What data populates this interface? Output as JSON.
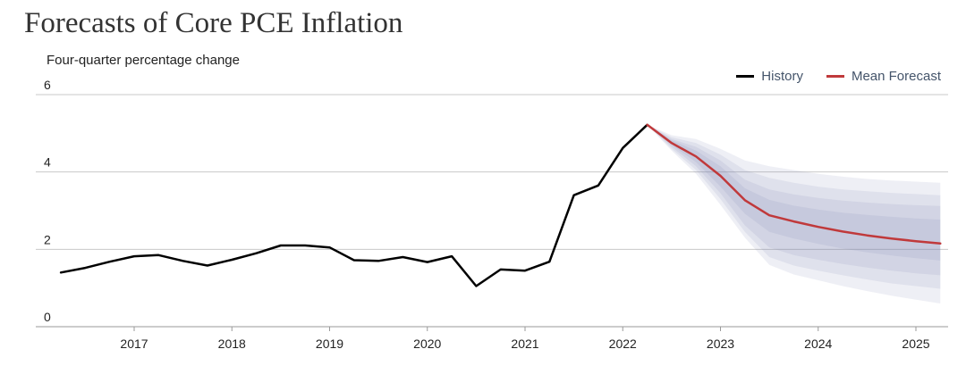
{
  "chart_data": {
    "type": "line",
    "title": "Forecasts of Core PCE Inflation",
    "ylabel": "Four-quarter percentage change",
    "xlabel": "",
    "ylim": [
      0,
      6
    ],
    "yticks": [
      0,
      2,
      4,
      6
    ],
    "xlim": [
      2016.25,
      2025.5
    ],
    "xticks": [
      {
        "label": "2017",
        "value": 2017
      },
      {
        "label": "2018",
        "value": 2018
      },
      {
        "label": "2019",
        "value": 2019
      },
      {
        "label": "2020",
        "value": 2020
      },
      {
        "label": "2021",
        "value": 2021
      },
      {
        "label": "2022",
        "value": 2022
      },
      {
        "label": "2023",
        "value": 2023
      },
      {
        "label": "2024",
        "value": 2024
      },
      {
        "label": "2025",
        "value": 2025
      }
    ],
    "grid": true,
    "legend_position": "top-right",
    "series": [
      {
        "name": "History",
        "color": "#000000",
        "points": [
          [
            2016.25,
            1.4
          ],
          [
            2016.5,
            1.52
          ],
          [
            2016.75,
            1.68
          ],
          [
            2017.0,
            1.82
          ],
          [
            2017.25,
            1.85
          ],
          [
            2017.5,
            1.7
          ],
          [
            2017.75,
            1.58
          ],
          [
            2018.0,
            1.73
          ],
          [
            2018.25,
            1.9
          ],
          [
            2018.5,
            2.1
          ],
          [
            2018.75,
            2.1
          ],
          [
            2019.0,
            2.05
          ],
          [
            2019.25,
            1.72
          ],
          [
            2019.5,
            1.7
          ],
          [
            2019.75,
            1.8
          ],
          [
            2020.0,
            1.67
          ],
          [
            2020.25,
            1.82
          ],
          [
            2020.5,
            1.05
          ],
          [
            2020.75,
            1.48
          ],
          [
            2021.0,
            1.45
          ],
          [
            2021.25,
            1.68
          ],
          [
            2021.5,
            3.4
          ],
          [
            2021.75,
            3.65
          ],
          [
            2022.0,
            4.62
          ],
          [
            2022.25,
            5.22
          ]
        ]
      },
      {
        "name": "Mean Forecast",
        "color": "#c0393b",
        "points": [
          [
            2022.25,
            5.22
          ],
          [
            2022.5,
            4.75
          ],
          [
            2022.75,
            4.4
          ],
          [
            2023.0,
            3.9
          ],
          [
            2023.25,
            3.27
          ],
          [
            2023.5,
            2.88
          ],
          [
            2023.75,
            2.72
          ],
          [
            2024.0,
            2.58
          ],
          [
            2024.25,
            2.46
          ],
          [
            2024.5,
            2.36
          ],
          [
            2024.75,
            2.28
          ],
          [
            2025.0,
            2.21
          ],
          [
            2025.25,
            2.15
          ]
        ]
      }
    ],
    "uncertainty_bands": {
      "color": "#7c87b4",
      "x": [
        2022.25,
        2022.5,
        2022.75,
        2023.0,
        2023.25,
        2023.5,
        2023.75,
        2024.0,
        2024.25,
        2024.5,
        2024.75,
        2025.0,
        2025.25
      ],
      "bands": [
        {
          "upper": [
            5.22,
            4.95,
            4.85,
            4.6,
            4.3,
            4.15,
            4.05,
            3.95,
            3.88,
            3.82,
            3.78,
            3.75,
            3.72
          ],
          "lower": [
            5.22,
            4.55,
            3.95,
            3.15,
            2.3,
            1.6,
            1.35,
            1.2,
            1.05,
            0.92,
            0.8,
            0.7,
            0.6
          ]
        },
        {
          "upper": [
            5.22,
            4.9,
            4.75,
            4.45,
            4.05,
            3.85,
            3.72,
            3.62,
            3.55,
            3.5,
            3.46,
            3.43,
            3.4
          ],
          "lower": [
            5.22,
            4.6,
            4.05,
            3.3,
            2.45,
            1.8,
            1.58,
            1.45,
            1.33,
            1.22,
            1.12,
            1.05,
            0.98
          ]
        },
        {
          "upper": [
            5.22,
            4.85,
            4.65,
            4.3,
            3.8,
            3.55,
            3.42,
            3.33,
            3.26,
            3.21,
            3.17,
            3.14,
            3.12
          ],
          "lower": [
            5.22,
            4.65,
            4.15,
            3.45,
            2.62,
            2.05,
            1.85,
            1.73,
            1.62,
            1.53,
            1.45,
            1.38,
            1.33
          ]
        },
        {
          "upper": [
            5.22,
            4.82,
            4.55,
            4.15,
            3.58,
            3.28,
            3.13,
            3.03,
            2.95,
            2.89,
            2.84,
            2.8,
            2.77
          ],
          "lower": [
            5.22,
            4.7,
            4.25,
            3.62,
            2.92,
            2.45,
            2.28,
            2.14,
            2.02,
            1.92,
            1.84,
            1.77,
            1.71
          ]
        }
      ]
    }
  }
}
